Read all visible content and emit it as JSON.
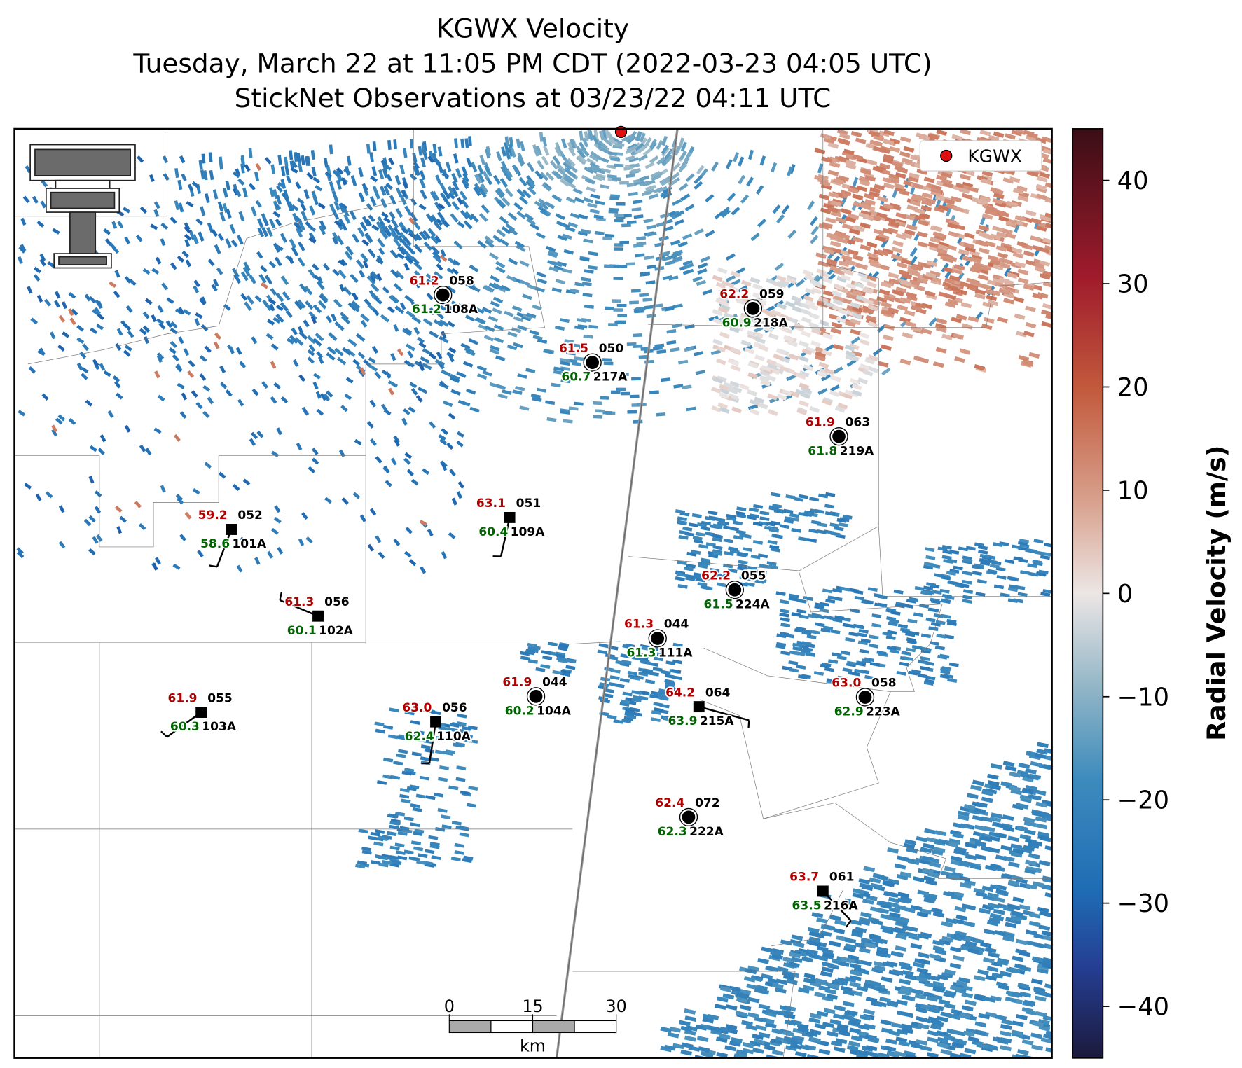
{
  "header": {
    "title": "KGWX Velocity",
    "subtitle": "Tuesday, March 22 at 11:05 PM CDT (2022-03-23 04:05 UTC)",
    "observations": "StickNet Observations at 03/23/22 04:11 UTC"
  },
  "legend": {
    "label": "KGWX"
  },
  "colorbar": {
    "label": "Radial Velocity (m/s)",
    "clim": [
      -45,
      45
    ],
    "ticks": [
      {
        "value": -40,
        "label": "−40"
      },
      {
        "value": -30,
        "label": "−30"
      },
      {
        "value": -20,
        "label": "−20"
      },
      {
        "value": -10,
        "label": "−10"
      },
      0,
      10,
      20,
      30,
      40
    ]
  },
  "scale_bar": {
    "ticks": [
      0,
      15,
      30
    ],
    "unit": "km"
  },
  "stations": [
    {
      "temperature": "61.2",
      "pressure": "058",
      "dewpoint": "61.2",
      "id": "108A"
    },
    {
      "temperature": "61.5",
      "pressure": "050",
      "dewpoint": "60.7",
      "id": "217A"
    },
    {
      "temperature": "62.2",
      "pressure": "059",
      "dewpoint": "60.9",
      "id": "218A"
    },
    {
      "temperature": "61.9",
      "pressure": "063",
      "dewpoint": "61.8",
      "id": "219A"
    },
    {
      "temperature": "59.2",
      "pressure": "052",
      "dewpoint": "58.6",
      "id": "101A"
    },
    {
      "temperature": "63.1",
      "pressure": "051",
      "dewpoint": "60.4",
      "id": "109A"
    },
    {
      "temperature": "62.2",
      "pressure": "055",
      "dewpoint": "61.5",
      "id": "224A"
    },
    {
      "temperature": "61.3",
      "pressure": "056",
      "dewpoint": "60.1",
      "id": "102A"
    },
    {
      "temperature": "61.3",
      "pressure": "044",
      "dewpoint": "61.3",
      "id": "111A"
    },
    {
      "temperature": "61.9",
      "pressure": "044",
      "dewpoint": "60.2",
      "id": "104A"
    },
    {
      "temperature": "64.2",
      "pressure": "064",
      "dewpoint": "63.9",
      "id": "215A"
    },
    {
      "temperature": "63.0",
      "pressure": "058",
      "dewpoint": "62.9",
      "id": "223A"
    },
    {
      "temperature": "61.9",
      "pressure": "055",
      "dewpoint": "60.3",
      "id": "103A"
    },
    {
      "temperature": "63.0",
      "pressure": "056",
      "dewpoint": "62.4",
      "id": "110A"
    },
    {
      "temperature": "62.4",
      "pressure": "072",
      "dewpoint": "62.3",
      "id": "222A"
    },
    {
      "temperature": "63.7",
      "pressure": "061",
      "dewpoint": "63.5",
      "id": "216A"
    }
  ]
}
